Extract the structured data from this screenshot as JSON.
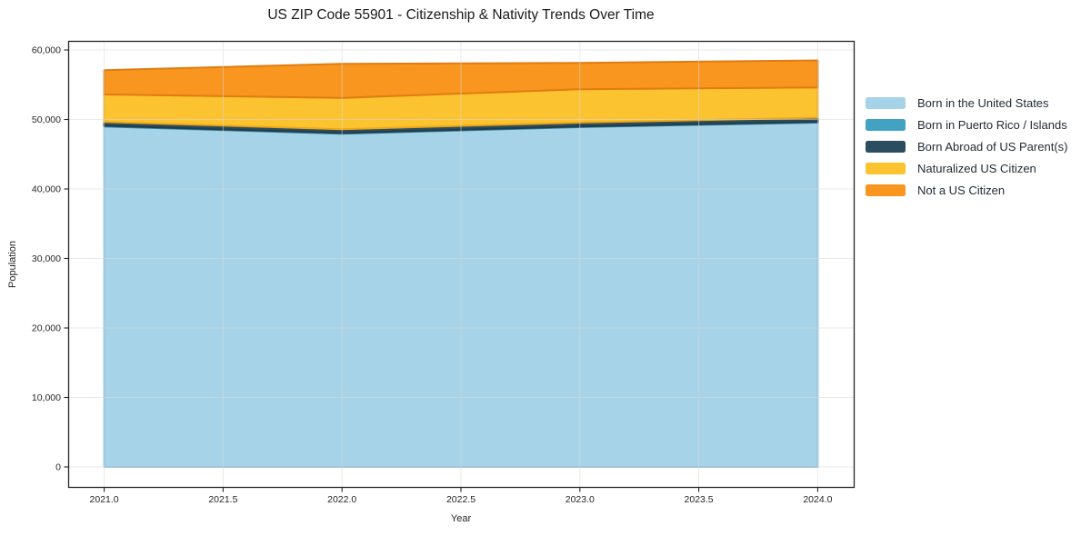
{
  "title": "US ZIP Code 55901 - Citizenship & Nativity Trends Over Time",
  "chart_data": {
    "type": "area",
    "stacked": true,
    "title": "US ZIP Code 55901 - Citizenship & Nativity Trends Over Time",
    "xlabel": "Year",
    "ylabel": "Population",
    "x": [
      2021,
      2022,
      2023,
      2024
    ],
    "series": [
      {
        "name": "Born in the United States",
        "color": "#a6d3e8",
        "edge": "#8cc1db",
        "values": [
          49000,
          47950,
          48900,
          49550
        ]
      },
      {
        "name": "Born in Puerto Rico / Islands",
        "color": "#41a2c2",
        "edge": "#35869f",
        "values": [
          100,
          100,
          100,
          100
        ]
      },
      {
        "name": "Born Abroad of US Parent(s)",
        "color": "#2c4d60",
        "edge": "#223d4d",
        "values": [
          550,
          550,
          550,
          600
        ]
      },
      {
        "name": "Naturalized US Citizen",
        "color": "#fcc330",
        "edge": "#eda816",
        "values": [
          3950,
          4500,
          4800,
          4350
        ]
      },
      {
        "name": "Not a US Citizen",
        "color": "#f8961f",
        "edge": "#e07c12",
        "values": [
          3500,
          4900,
          3800,
          3900
        ]
      }
    ],
    "xticks": {
      "values": [
        2021.0,
        2021.5,
        2022.0,
        2022.5,
        2023.0,
        2023.5,
        2024.0
      ],
      "labels": [
        "2021.0",
        "2021.5",
        "2022.0",
        "2022.5",
        "2023.0",
        "2023.5",
        "2024.0"
      ]
    },
    "yticks": {
      "values": [
        0,
        10000,
        20000,
        30000,
        40000,
        50000,
        60000
      ],
      "labels": [
        "0",
        "10,000",
        "20,000",
        "30,000",
        "40,000",
        "50,000",
        "60,000"
      ]
    },
    "ylim": [
      0,
      60000
    ],
    "xlim_data": [
      2021,
      2024
    ],
    "grid": true,
    "legend_position": "right-outside",
    "colors": {
      "background": "#ffffff",
      "spine": "#262626",
      "grid": "#d9d9d9",
      "tick_text": "#262626",
      "legend_text": "#1f2a33"
    }
  }
}
